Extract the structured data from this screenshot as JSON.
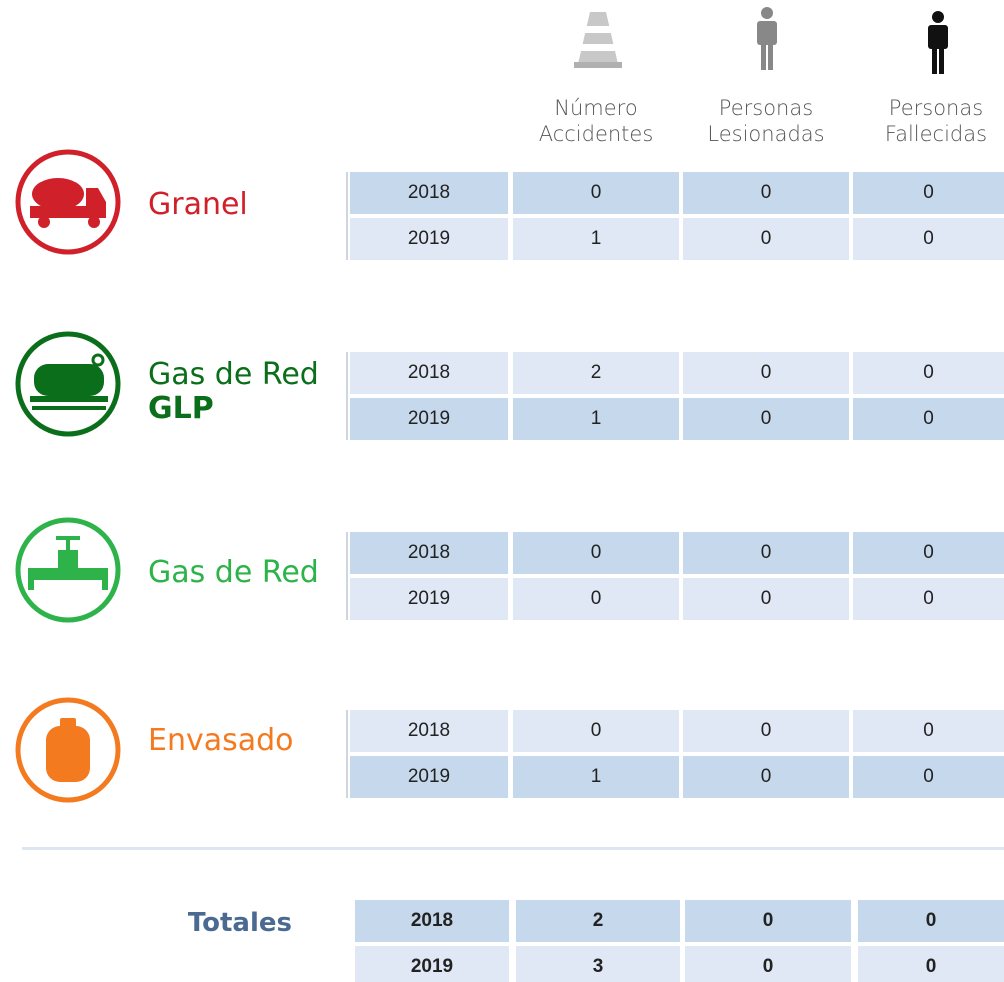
{
  "header": {
    "columns": [
      [
        "Número",
        "Accidentes"
      ],
      [
        "Personas",
        "Lesionadas"
      ],
      [
        "Personas",
        "Fallecidas"
      ]
    ]
  },
  "groups": [
    {
      "name": "Granel",
      "rows": [
        {
          "year": 2018,
          "values": [
            0,
            0,
            0
          ]
        },
        {
          "year": 2019,
          "values": [
            1,
            0,
            0
          ]
        }
      ]
    },
    {
      "name": "Gas de Red",
      "subname": "GLP",
      "rows": [
        {
          "year": 2018,
          "values": [
            2,
            0,
            0
          ]
        },
        {
          "year": 2019,
          "values": [
            1,
            0,
            0
          ]
        }
      ]
    },
    {
      "name": "Gas de Red",
      "rows": [
        {
          "year": 2018,
          "values": [
            0,
            0,
            0
          ]
        },
        {
          "year": 2019,
          "values": [
            0,
            0,
            0
          ]
        }
      ]
    },
    {
      "name": "Envasado",
      "rows": [
        {
          "year": 2018,
          "values": [
            0,
            0,
            0
          ]
        },
        {
          "year": 2019,
          "values": [
            1,
            0,
            0
          ]
        }
      ]
    }
  ],
  "totals": {
    "label": "Totales",
    "rows": [
      {
        "year": 2018,
        "values": [
          2,
          0,
          0
        ]
      },
      {
        "year": 2019,
        "values": [
          3,
          0,
          0
        ]
      }
    ]
  }
}
